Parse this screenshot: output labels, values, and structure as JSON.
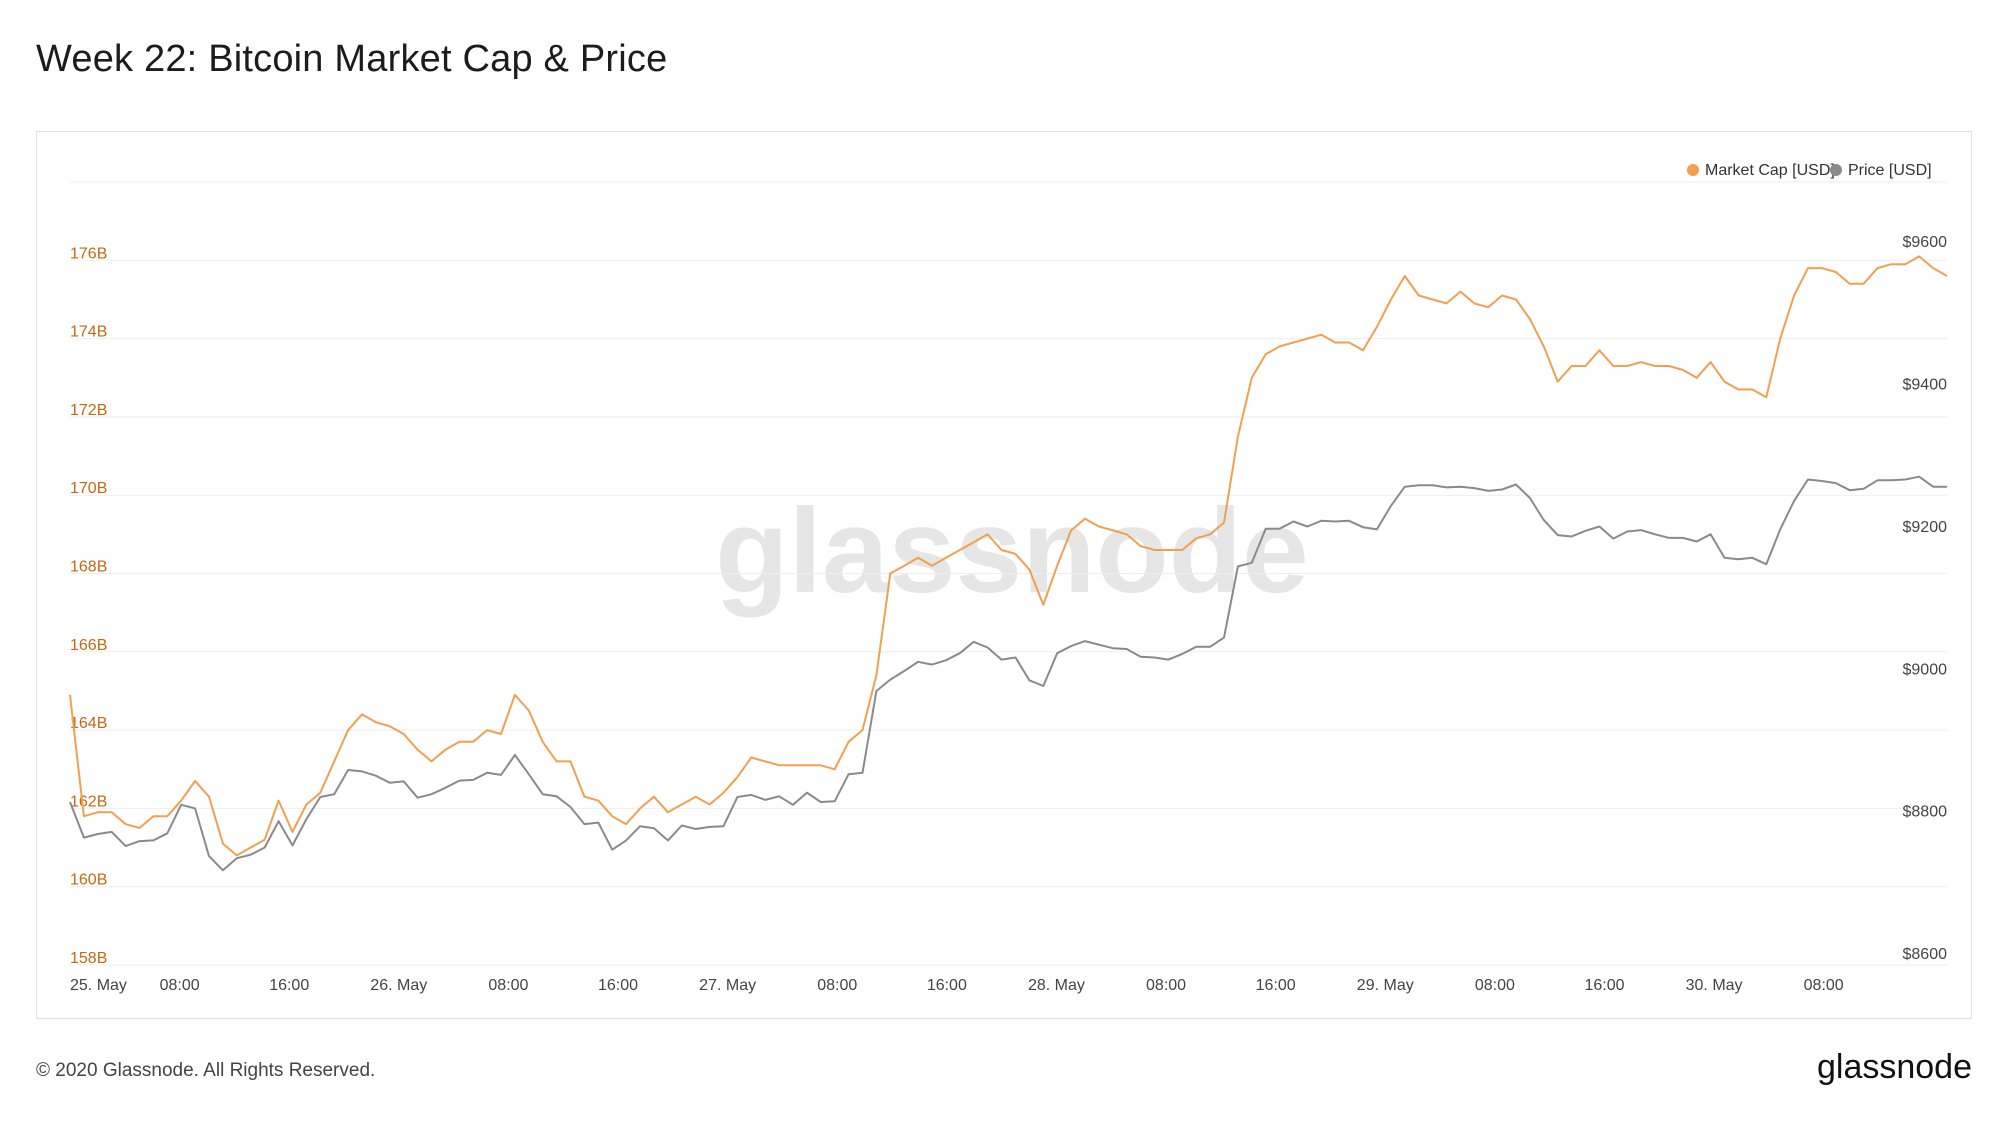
{
  "header": {
    "title": "Week 22: Bitcoin Market Cap & Price"
  },
  "footer": {
    "copyright": "© 2020 Glassnode. All Rights Reserved.",
    "brand": "glassnode"
  },
  "watermark": "glassnode",
  "colors": {
    "market_cap": "#f0a050",
    "price": "#8a8a8a",
    "left_axis_text": "#c26a12",
    "grid": "#eeeeee"
  },
  "chart_data": {
    "type": "line",
    "legend_position": "top-right",
    "grid": true,
    "x_ticks": [
      "25. May",
      "08:00",
      "16:00",
      "26. May",
      "08:00",
      "16:00",
      "27. May",
      "08:00",
      "16:00",
      "28. May",
      "08:00",
      "16:00",
      "29. May",
      "08:00",
      "16:00",
      "30. May",
      "08:00"
    ],
    "x_range_hours": [
      0,
      137
    ],
    "y_left": {
      "label": "Market Cap [USD]",
      "ticks": [
        "158B",
        "160B",
        "162B",
        "164B",
        "166B",
        "168B",
        "170B",
        "172B",
        "174B",
        "176B"
      ],
      "range": [
        158,
        178
      ]
    },
    "y_right": {
      "label": "Price [USD]",
      "ticks": [
        "$8600",
        "$8800",
        "$9000",
        "$9200",
        "$9400",
        "$9600"
      ],
      "range": [
        8600,
        9700
      ]
    },
    "series": [
      {
        "name": "Market Cap [USD]",
        "axis": "left",
        "values": [
          164.9,
          161.8,
          161.9,
          161.9,
          161.6,
          161.5,
          161.8,
          161.8,
          162.2,
          162.7,
          162.3,
          161.1,
          160.8,
          161.0,
          161.2,
          162.2,
          161.4,
          162.1,
          162.4,
          163.2,
          164.0,
          164.4,
          164.2,
          164.1,
          163.9,
          163.5,
          163.2,
          163.5,
          163.7,
          163.7,
          164.0,
          163.9,
          164.9,
          164.5,
          163.7,
          163.2,
          163.2,
          162.3,
          162.2,
          161.8,
          161.6,
          162.0,
          162.3,
          161.9,
          162.1,
          162.3,
          162.1,
          162.4,
          162.8,
          163.3,
          163.2,
          163.1,
          163.1,
          163.1,
          163.1,
          163.0,
          163.7,
          164.0,
          165.4,
          168.0,
          168.2,
          168.4,
          168.2,
          168.4,
          168.6,
          168.8,
          169.0,
          168.6,
          168.5,
          168.1,
          167.2,
          168.2,
          169.1,
          169.4,
          169.2,
          169.1,
          169.0,
          168.7,
          168.6,
          168.6,
          168.6,
          168.9,
          169.0,
          169.3,
          171.5,
          173.0,
          173.6,
          173.8,
          173.9,
          174.0,
          174.1,
          173.9,
          173.9,
          173.7,
          174.3,
          175.0,
          175.6,
          175.1,
          175.0,
          174.9,
          175.2,
          174.9,
          174.8,
          175.1,
          175.0,
          174.5,
          173.8,
          172.9,
          173.3,
          173.3,
          173.7,
          173.3,
          173.3,
          173.4,
          173.3,
          173.3,
          173.2,
          173.0,
          173.4,
          172.9,
          172.7,
          172.7,
          172.5,
          174.0,
          175.1,
          175.8,
          175.8,
          175.7,
          175.4,
          175.4,
          175.8,
          175.9,
          175.9,
          176.1,
          175.8,
          175.6
        ]
      },
      {
        "name": "Price [USD]",
        "axis": "right",
        "values": [
          8829,
          8779,
          8784,
          8787,
          8767,
          8774,
          8775,
          8785,
          8825,
          8820,
          8753,
          8733,
          8750,
          8755,
          8765,
          8802,
          8768,
          8805,
          8836,
          8840,
          8874,
          8872,
          8866,
          8856,
          8858,
          8835,
          8840,
          8849,
          8859,
          8860,
          8870,
          8867,
          8895,
          8868,
          8840,
          8837,
          8822,
          8798,
          8800,
          8762,
          8775,
          8795,
          8792,
          8775,
          8796,
          8791,
          8794,
          8795,
          8836,
          8839,
          8832,
          8837,
          8825,
          8842,
          8829,
          8830,
          8868,
          8870,
          8985,
          9001,
          9013,
          9026,
          9022,
          9028,
          9038,
          9054,
          9046,
          9029,
          9032,
          9000,
          8992,
          9038,
          9048,
          9055,
          9050,
          9045,
          9044,
          9033,
          9032,
          9029,
          9037,
          9047,
          9047,
          9060,
          9160,
          9165,
          9213,
          9213,
          9223,
          9216,
          9224,
          9223,
          9224,
          9215,
          9212,
          9245,
          9272,
          9274,
          9274,
          9271,
          9272,
          9270,
          9266,
          9268,
          9275,
          9256,
          9225,
          9204,
          9202,
          9210,
          9216,
          9199,
          9209,
          9211,
          9205,
          9200,
          9200,
          9195,
          9205,
          9172,
          9170,
          9172,
          9163,
          9212,
          9252,
          9282,
          9280,
          9277,
          9267,
          9269,
          9281,
          9281,
          9282,
          9286,
          9272,
          9272
        ]
      }
    ]
  }
}
